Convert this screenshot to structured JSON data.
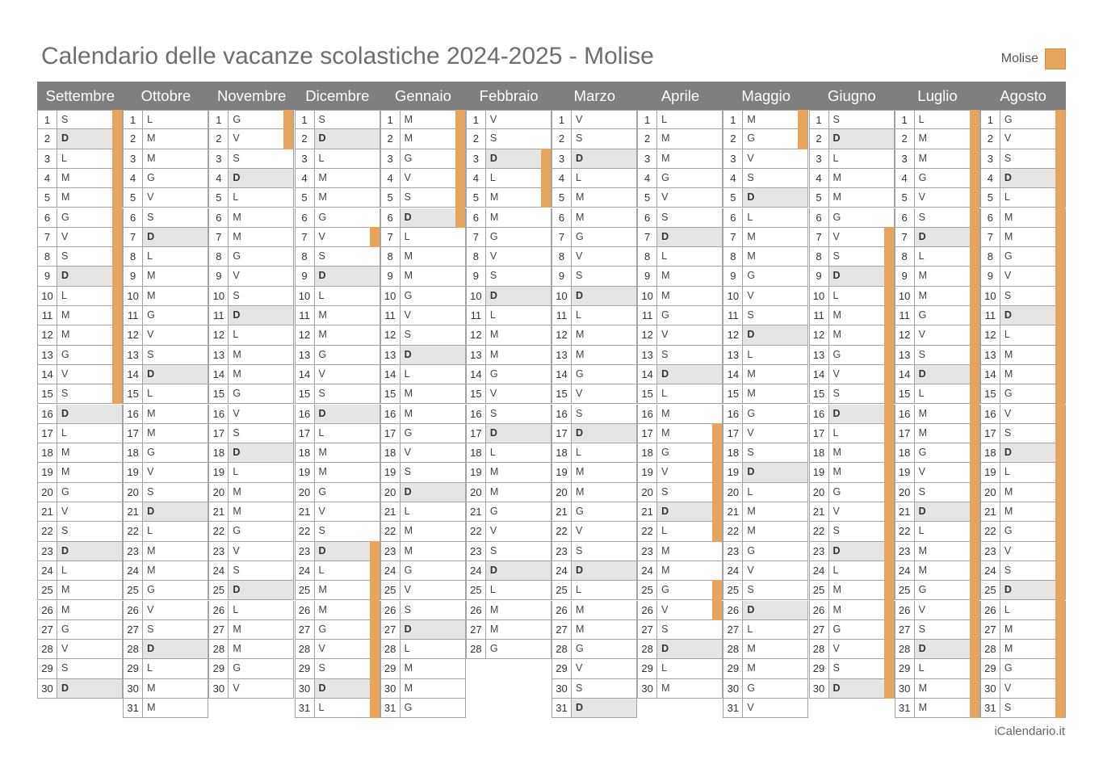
{
  "title": "Calendario delle vacanze scolastiche 2024-2025 - Molise",
  "legend": {
    "label": "Molise",
    "color": "#e5a55d"
  },
  "footer": "iCalendario.it",
  "colors": {
    "header_bg": "#7f7f7f",
    "sunday_bg": "#e5e5e5",
    "vacation": "#e5a55d"
  },
  "months": [
    {
      "name": "Settembre",
      "days": 30,
      "first_weekday": 6,
      "vacation": [
        1,
        2,
        3,
        4,
        5,
        6,
        7,
        8,
        9,
        10,
        11,
        12,
        13,
        14,
        15
      ]
    },
    {
      "name": "Ottobre",
      "days": 31,
      "first_weekday": 1,
      "vacation": []
    },
    {
      "name": "Novembre",
      "days": 30,
      "first_weekday": 4,
      "vacation": [
        1,
        2
      ]
    },
    {
      "name": "Dicembre",
      "days": 31,
      "first_weekday": 6,
      "vacation": [
        7,
        23,
        24,
        25,
        26,
        27,
        28,
        29,
        30,
        31
      ]
    },
    {
      "name": "Gennaio",
      "days": 31,
      "first_weekday": 2,
      "vacation": [
        1,
        2,
        3,
        4,
        5,
        6
      ]
    },
    {
      "name": "Febbraio",
      "days": 28,
      "first_weekday": 5,
      "vacation": [
        3,
        4,
        5
      ]
    },
    {
      "name": "Marzo",
      "days": 31,
      "first_weekday": 5,
      "vacation": []
    },
    {
      "name": "Aprile",
      "days": 30,
      "first_weekday": 1,
      "vacation": [
        17,
        18,
        19,
        20,
        21,
        22,
        25,
        26
      ]
    },
    {
      "name": "Maggio",
      "days": 31,
      "first_weekday": 3,
      "vacation": [
        1,
        2
      ]
    },
    {
      "name": "Giugno",
      "days": 30,
      "first_weekday": 6,
      "vacation": [
        7,
        8,
        9,
        10,
        11,
        12,
        13,
        14,
        15,
        16,
        17,
        18,
        19,
        20,
        21,
        22,
        23,
        24,
        25,
        26,
        27,
        28,
        29,
        30
      ]
    },
    {
      "name": "Luglio",
      "days": 31,
      "first_weekday": 1,
      "vacation": [
        1,
        2,
        3,
        4,
        5,
        6,
        7,
        8,
        9,
        10,
        11,
        12,
        13,
        14,
        15,
        16,
        17,
        18,
        19,
        20,
        21,
        22,
        23,
        24,
        25,
        26,
        27,
        28,
        29,
        30,
        31
      ]
    },
    {
      "name": "Agosto",
      "days": 31,
      "first_weekday": 4,
      "vacation": [
        1,
        2,
        3,
        4,
        5,
        6,
        7,
        8,
        9,
        10,
        11,
        12,
        13,
        14,
        15,
        16,
        17,
        18,
        19,
        20,
        21,
        22,
        23,
        24,
        25,
        26,
        27,
        28,
        29,
        30,
        31
      ]
    }
  ],
  "weekday_letters": [
    "D",
    "L",
    "M",
    "M",
    "G",
    "V",
    "S"
  ]
}
